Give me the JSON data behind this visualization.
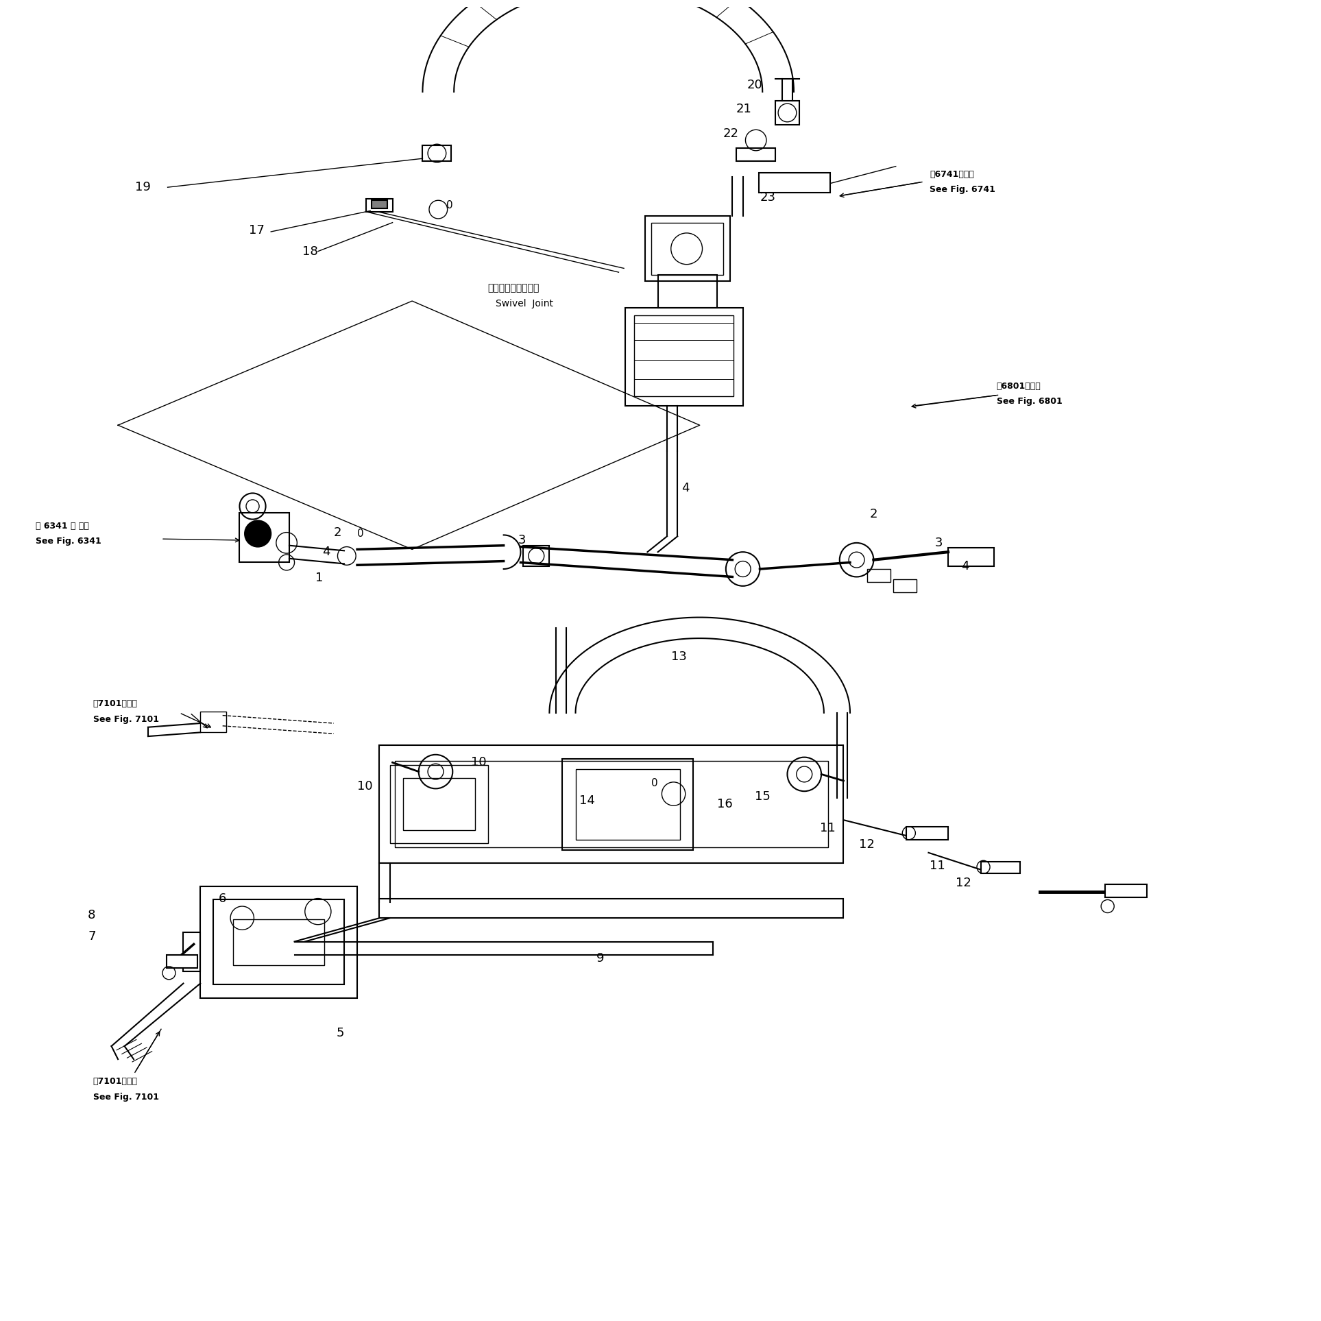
{
  "background_color": "#ffffff",
  "line_color": "#000000",
  "fig_width": 19.07,
  "fig_height": 28.5,
  "lw_main": 1.5,
  "lw_thin": 1.0,
  "lw_thick": 2.5,
  "fs_num": 13,
  "fs_ref": 9,
  "fs_small": 10
}
